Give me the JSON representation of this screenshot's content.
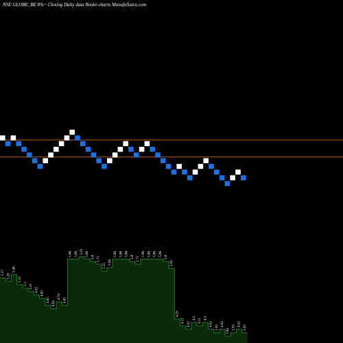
{
  "chart_data": [
    {
      "type": "renko",
      "title": "NSE GLOBE_BE 8%~  Closing Daily data  Renko  charts MunafaSutra.com",
      "values": [
        0,
        -1,
        0,
        -1,
        -2,
        -3,
        -4,
        -5,
        -4,
        -3,
        -2,
        -1,
        0,
        1,
        0,
        -1,
        -2,
        -3,
        -4,
        -5,
        -4,
        -3,
        -2,
        -1,
        -2,
        -3,
        -2,
        -1,
        -2,
        -3,
        -4,
        -5,
        -6,
        -5,
        -6,
        -7,
        -6,
        -5,
        -4,
        -5,
        -6,
        -7,
        -8,
        -7,
        -6,
        -7
      ],
      "up_color": "#ffffff",
      "down_color": "#1e6fe0",
      "ylim": [
        -12,
        3
      ],
      "hlines": [
        -0.85,
        -3.85
      ],
      "hline_color": "#b5651d"
    },
    {
      "type": "area",
      "values": [
        5.37,
        5.28,
        5.46,
        5.19,
        5.1,
        5.01,
        4.92,
        4.83,
        4.65,
        4.56,
        4.74,
        4.65,
        5.86,
        5.86,
        5.92,
        5.86,
        5.8,
        5.73,
        5.55,
        5.64,
        5.86,
        5.86,
        5.86,
        5.8,
        5.73,
        5.86,
        5.86,
        5.86,
        5.86,
        5.8,
        5.62,
        4.29,
        4.11,
        4.02,
        4.2,
        4.11,
        4.2,
        4.02,
        3.93,
        4.02,
        3.84,
        3.93,
        4.02,
        3.93
      ],
      "color": "#0b2a0b",
      "line_color": "#1f7a1f",
      "ylim": [
        3.66,
        6.36
      ]
    }
  ]
}
